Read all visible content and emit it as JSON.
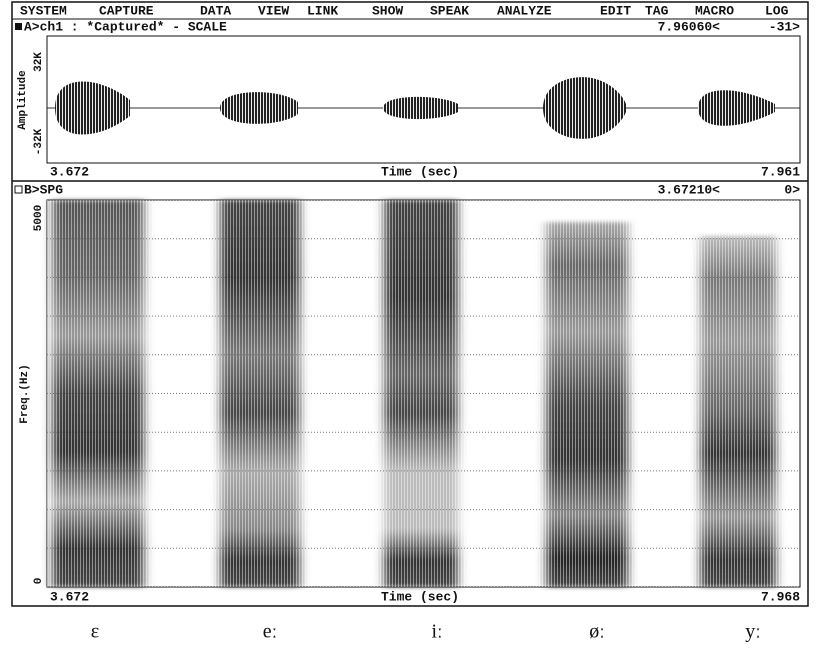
{
  "menu": [
    "SYSTEM",
    "CAPTURE",
    "DATA",
    "VIEW",
    "LINK",
    "SHOW",
    "SPEAK",
    "ANALYZE",
    "EDIT",
    "TAG",
    "MACRO",
    "LOG"
  ],
  "panel_a": {
    "header": "A>ch1 : *Captured* - SCALE",
    "cursor_time": "7.96060<",
    "cursor_value": "-31>",
    "y_label": "Amplitude",
    "y_max": "32K",
    "y_min": "-32K",
    "x_start": "3.672",
    "x_label": "Time (sec)",
    "x_end": "7.961"
  },
  "panel_b": {
    "header": "B>SPG",
    "cursor_time": "3.67210<",
    "cursor_value": "0>",
    "y_label": "Freq.(Hz)",
    "y_max": "5000",
    "y_min": "0",
    "x_start": "3.672",
    "x_label": "Time (sec)",
    "x_end": "7.968"
  },
  "vowel_labels": [
    "ε",
    "eː",
    "iː",
    "øː",
    "yː"
  ]
}
